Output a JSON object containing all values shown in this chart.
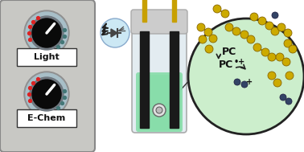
{
  "panel_color": "#c8c8c4",
  "panel_border": "#888888",
  "knob_ring_color": "#a8bfc8",
  "knob_color": "#0a0a0a",
  "knob_indicator": "#ffffff",
  "led_red": "#dd2222",
  "led_teal": "#447777",
  "label_box_color": "#ffffff",
  "label_border": "#333333",
  "light_label": "Light",
  "echem_label": "E-Chem",
  "vial_glass_color": "#dde8ee",
  "vial_liquid_color": "#88ddaa",
  "vial_cap_color": "#cccccc",
  "electrode_color": "#1a1a1a",
  "electrode_rod_color": "#c8a000",
  "circle_bg": "#cceecc",
  "circle_border": "#222222",
  "pc_text": "PC",
  "pc_rad_text": "PC",
  "ball_gold": "#ccaa00",
  "ball_dark": "#334466",
  "led_bg": "#cce8f4",
  "arrow_color": "#111111",
  "bg_color": "#ffffff"
}
